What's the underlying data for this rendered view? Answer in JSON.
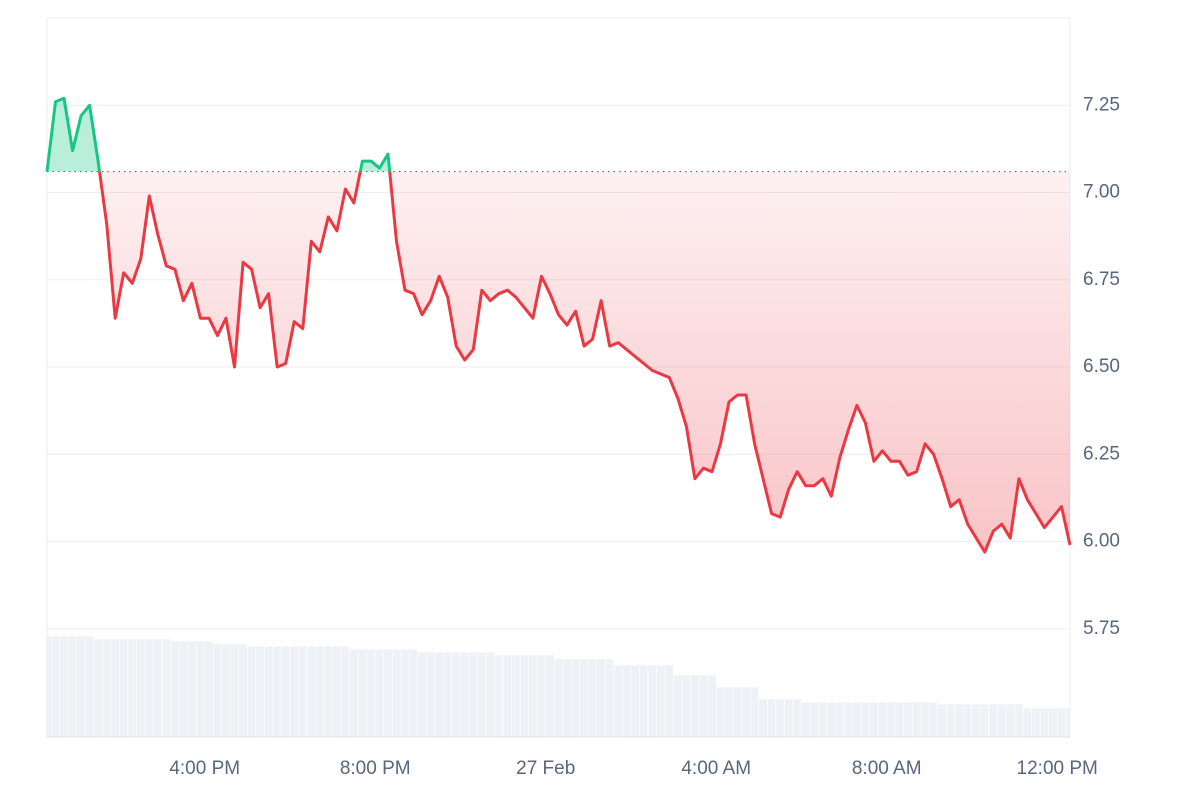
{
  "chart_data": {
    "type": "line",
    "x": [
      12.3,
      12.5,
      12.7,
      12.9,
      13.1,
      13.3,
      13.5,
      13.7,
      13.9,
      14.1,
      14.3,
      14.5,
      14.7,
      14.9,
      15.1,
      15.3,
      15.5,
      15.7,
      15.9,
      16.1,
      16.3,
      16.5,
      16.7,
      16.9,
      17.1,
      17.3,
      17.5,
      17.7,
      17.9,
      18.1,
      18.3,
      18.5,
      18.7,
      18.9,
      19.1,
      19.3,
      19.5,
      19.7,
      19.9,
      20.1,
      20.3,
      20.5,
      20.7,
      20.9,
      21.1,
      21.3,
      21.5,
      21.7,
      21.9,
      22.1,
      22.3,
      22.5,
      22.7,
      22.9,
      23.1,
      23.3,
      23.5,
      23.7,
      23.9,
      24.1,
      24.3,
      24.5,
      24.7,
      24.9,
      25.1,
      25.3,
      25.5,
      25.7,
      25.9,
      26.1,
      26.3,
      26.5,
      26.7,
      26.9,
      27.1,
      27.3,
      27.5,
      27.7,
      27.9,
      28.1,
      28.3,
      28.5,
      28.7,
      28.9,
      29.1,
      29.3,
      29.5,
      29.7,
      29.9,
      30.1,
      30.3,
      30.5,
      30.7,
      30.9,
      31.1,
      31.3,
      31.5,
      31.7,
      31.9,
      32.1,
      32.3,
      32.5,
      32.7,
      32.9,
      33.1,
      33.3,
      33.5,
      33.7,
      33.9,
      34.1,
      34.3,
      34.5,
      34.7,
      34.9,
      35.1,
      35.3,
      35.5,
      35.7,
      35.9,
      36.1,
      36.3
    ],
    "values": [
      7.06,
      7.26,
      7.27,
      7.12,
      7.22,
      7.25,
      7.09,
      6.91,
      6.64,
      6.77,
      6.74,
      6.81,
      6.99,
      6.88,
      6.79,
      6.78,
      6.69,
      6.74,
      6.64,
      6.64,
      6.59,
      6.64,
      6.5,
      6.8,
      6.78,
      6.67,
      6.71,
      6.5,
      6.51,
      6.63,
      6.61,
      6.86,
      6.83,
      6.93,
      6.89,
      7.01,
      6.97,
      7.09,
      7.09,
      7.07,
      7.11,
      6.86,
      6.72,
      6.71,
      6.65,
      6.69,
      6.76,
      6.7,
      6.56,
      6.52,
      6.55,
      6.72,
      6.69,
      6.71,
      6.72,
      6.7,
      6.67,
      6.64,
      6.76,
      6.71,
      6.65,
      6.62,
      6.66,
      6.56,
      6.58,
      6.69,
      6.56,
      6.57,
      6.55,
      6.53,
      6.51,
      6.49,
      6.48,
      6.47,
      6.41,
      6.33,
      6.18,
      6.21,
      6.2,
      6.28,
      6.4,
      6.42,
      6.42,
      6.28,
      6.18,
      6.08,
      6.07,
      6.15,
      6.2,
      6.16,
      6.16,
      6.18,
      6.13,
      6.24,
      6.32,
      6.39,
      6.34,
      6.23,
      6.26,
      6.23,
      6.23,
      6.19,
      6.2,
      6.28,
      6.25,
      6.18,
      6.1,
      6.12,
      6.05,
      6.01,
      5.97,
      6.03,
      6.05,
      6.01,
      6.18,
      6.12,
      6.08,
      6.04,
      6.07,
      6.1,
      5.99
    ],
    "baseline": 7.06,
    "up_color": "#16c784",
    "down_color": "#ea3943",
    "volume": {
      "color": "#eef1f5",
      "values": [
        101,
        101,
        101,
        101,
        101,
        101,
        98,
        98,
        98,
        98,
        98,
        98,
        98,
        98,
        98,
        96,
        96,
        96,
        96,
        96,
        93,
        93,
        93,
        93,
        91,
        91,
        91,
        91,
        91,
        91,
        91,
        91,
        91,
        91,
        91,
        91,
        88,
        88,
        88,
        88,
        88,
        88,
        88,
        88,
        85,
        85,
        85,
        85,
        85,
        85,
        85,
        85,
        85,
        82,
        82,
        82,
        82,
        82,
        82,
        82,
        78,
        78,
        78,
        78,
        78,
        78,
        78,
        72,
        72,
        72,
        72,
        72,
        72,
        72,
        62,
        62,
        62,
        62,
        62,
        50,
        50,
        50,
        50,
        50,
        38,
        38,
        38,
        38,
        38,
        35,
        35,
        35,
        35,
        35,
        35,
        35,
        35,
        35,
        35,
        35,
        35,
        35,
        35,
        35,
        35,
        33,
        33,
        33,
        33,
        33,
        33,
        33,
        33,
        33,
        33,
        29,
        29,
        29,
        29,
        29,
        29
      ]
    },
    "xlim": [
      12.3,
      36.3
    ],
    "xticks": [
      {
        "value": 16,
        "label": "4:00 PM"
      },
      {
        "value": 20,
        "label": "8:00 PM"
      },
      {
        "value": 24,
        "label": "27 Feb"
      },
      {
        "value": 28,
        "label": "4:00 AM"
      },
      {
        "value": 32,
        "label": "8:00 AM"
      },
      {
        "value": 36,
        "label": "12:00 PM"
      }
    ],
    "ylim": [
      5.44,
      7.5
    ],
    "yticks": [
      5.75,
      {
        "value": 6,
        "label": "6.00"
      },
      6.25,
      {
        "value": 6.5,
        "label": "6.50"
      },
      6.75,
      {
        "value": 7,
        "label": "7.00"
      },
      7.25
    ],
    "grid": true
  }
}
